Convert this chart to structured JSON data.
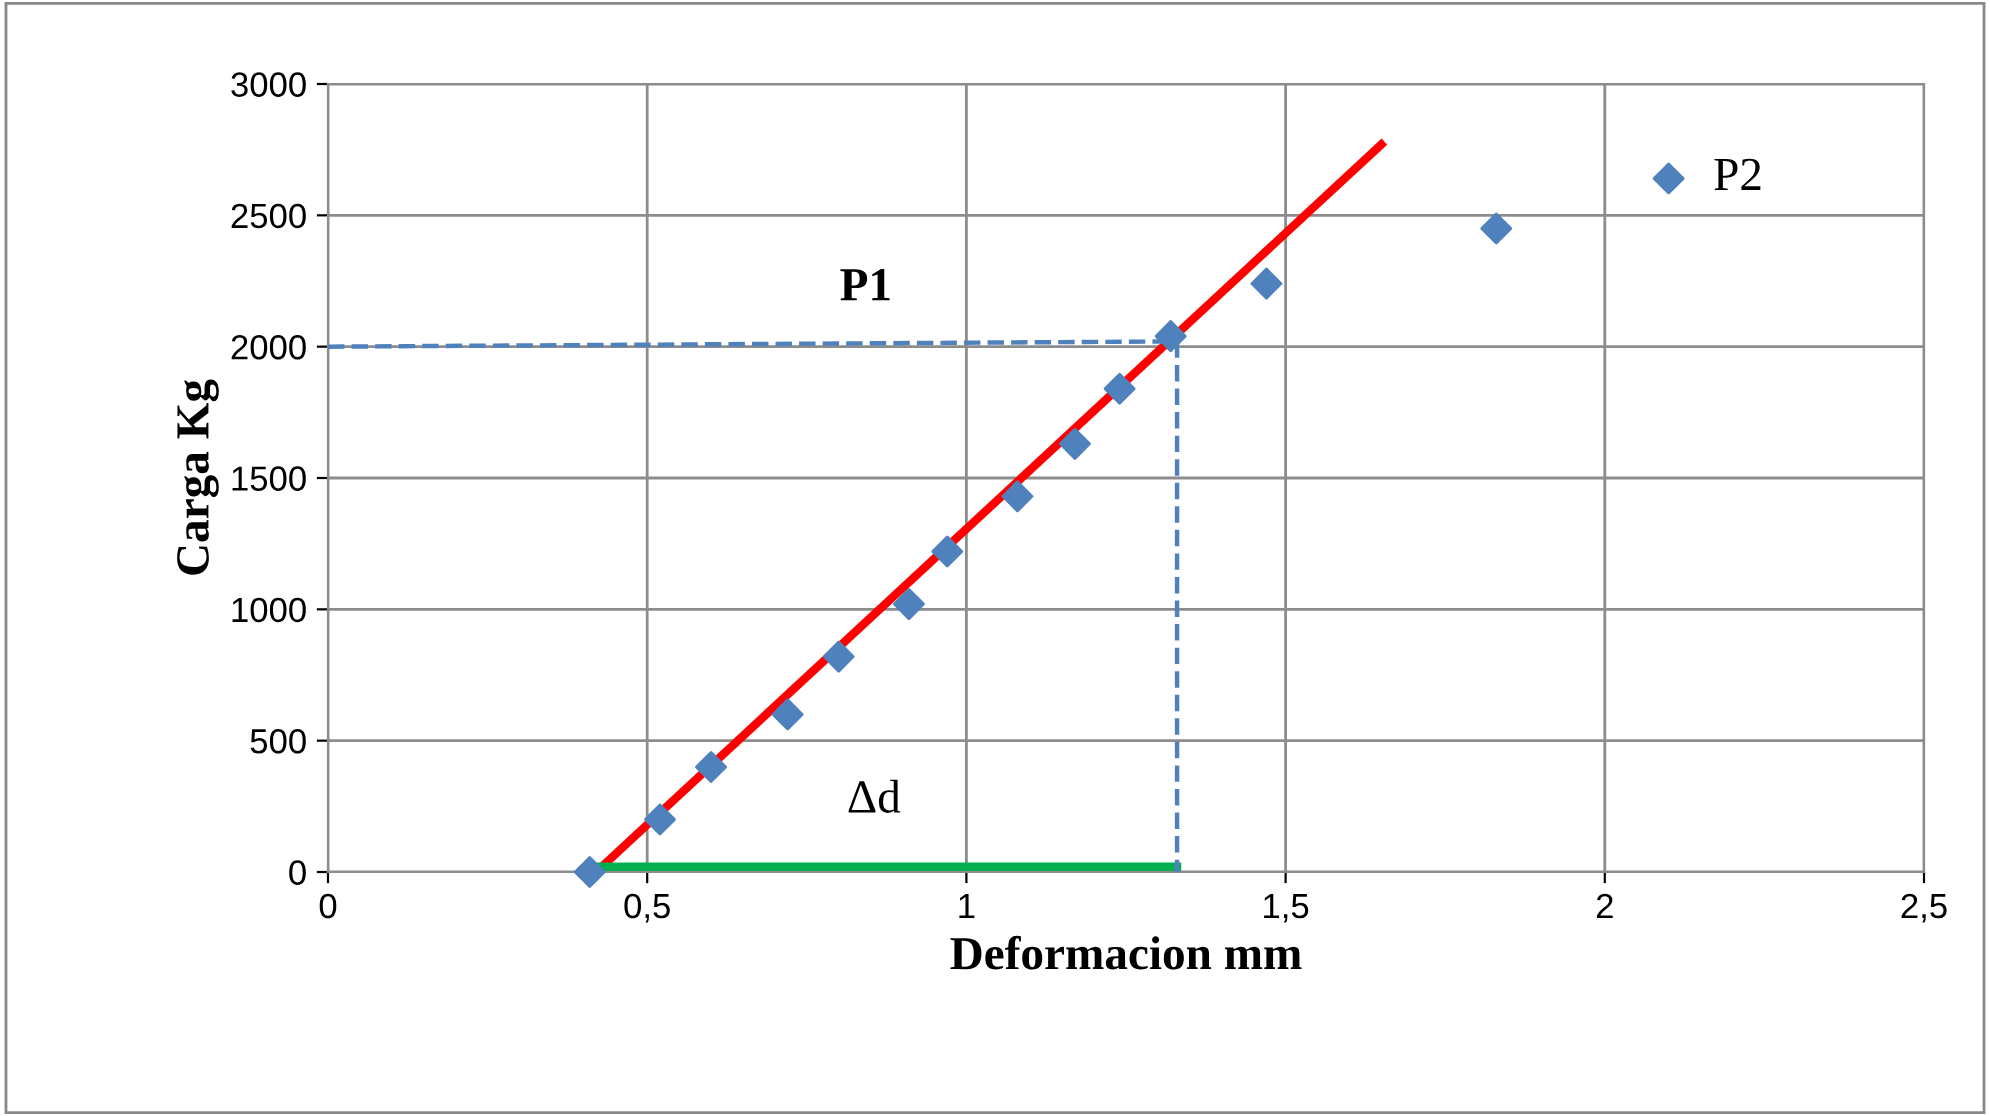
{
  "chart_data": {
    "type": "scatter",
    "xlabel": "Deformacion mm",
    "ylabel": "Carga Kg",
    "xlim": [
      0,
      2.5
    ],
    "ylim": [
      0,
      3000
    ],
    "xticks": [
      0,
      {
        "value": 0.5,
        "label": "0,5"
      },
      1,
      {
        "value": 1.5,
        "label": "1,5"
      },
      2,
      {
        "value": 2.5,
        "label": "2,5"
      }
    ],
    "yticks": [
      0,
      500,
      1000,
      1500,
      2000,
      2500,
      3000
    ],
    "grid": true,
    "legend": false,
    "series": [
      {
        "color": "#4f81bd",
        "marker": "diamond",
        "x": [
          0.41,
          0.52,
          0.6,
          0.72,
          0.8,
          0.91,
          0.97,
          1.08,
          1.17,
          1.24,
          1.32,
          1.47,
          1.83,
          2.1
        ],
        "values": [
          0,
          200,
          400,
          600,
          820,
          1020,
          1220,
          1430,
          1630,
          1840,
          2040,
          2240,
          2450,
          2640
        ]
      },
      {
        "type": "line",
        "color": "#ff0000",
        "line_style": "solid",
        "x": [
          0.42,
          1.65
        ],
        "values": [
          0,
          2770
        ]
      },
      {
        "type": "line",
        "color": "#00b050",
        "line_style": "solid",
        "x": [
          0.41,
          1.33
        ],
        "values": [
          20,
          20
        ]
      },
      {
        "type": "line",
        "color": "#4f81bd",
        "line_style": "dashed",
        "x": [
          0,
          1.33
        ],
        "values": [
          2000,
          2020
        ]
      },
      {
        "type": "line",
        "color": "#4f81bd",
        "line_style": "dashed",
        "x": [
          1.33,
          1.33
        ],
        "values": [
          2020,
          0
        ]
      }
    ],
    "annotations": [
      "P1",
      {
        "text": "P2",
        "x": 2.1,
        "y": 2640
      },
      "Δd"
    ]
  }
}
